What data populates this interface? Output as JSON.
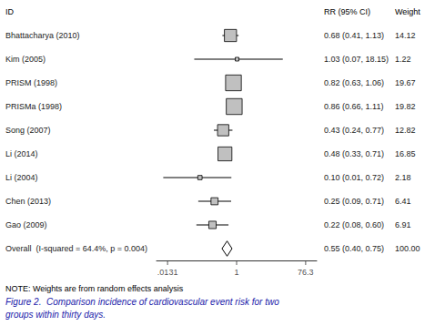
{
  "chart_data": {
    "type": "forest",
    "log": "x",
    "grid": false,
    "column_headers": [
      "ID",
      "RR (95% CI)",
      "Weight"
    ],
    "categories": [
      "Bhattacharya (2010)",
      "Kim (2005)",
      "PRISM (1998)",
      "PRISMa (1998)",
      "Song (2007)",
      "Li (2014)",
      "Li (2004)",
      "Chen (2013)",
      "Gao (2009)"
    ],
    "values": [
      0.68,
      1.03,
      0.82,
      0.86,
      0.43,
      0.48,
      0.1,
      0.25,
      0.22
    ],
    "value_labels": [
      "0.68 (0.41, 1.13)",
      "1.03 (0.07, 18.15)",
      "0.82 (0.63, 1.06)",
      "0.86 (0.66, 1.11)",
      "0.43 (0.24, 0.77)",
      "0.48 (0.33, 0.71)",
      "0.10 (0.01, 0.72)",
      "0.25 (0.09, 0.71)",
      "0.22 (0.08, 0.60)"
    ],
    "ci_low": [
      0.41,
      0.07,
      0.63,
      0.66,
      0.24,
      0.33,
      0.01,
      0.09,
      0.08
    ],
    "ci_high": [
      1.13,
      18.15,
      1.06,
      1.11,
      0.77,
      0.71,
      0.72,
      0.71,
      0.6
    ],
    "weights": [
      14.12,
      1.22,
      19.67,
      19.82,
      12.82,
      16.85,
      2.18,
      6.41,
      6.91
    ],
    "overall": {
      "label": "Overall  (I-squared = 64.4%, p = 0.004)",
      "value": 0.55,
      "ci_low": 0.4,
      "ci_high": 0.75,
      "value_label": "0.55 (0.40, 0.75)",
      "weight": 100,
      "weight_label": "100.00"
    },
    "xlim": [
      0.00655,
      152.6
    ],
    "xticks": [
      {
        "value": 0.0131,
        "label": ".0131"
      },
      1,
      {
        "value": 76.3,
        "label": "76.3"
      }
    ],
    "color": "#c0c0c0",
    "note": "NOTE: Weights are from random effects analysis",
    "caption": [
      "Figure 2.  Comparison incidence of cardiovascular event risk for two",
      "groups within thirty days."
    ],
    "caption_color": "#1a1aaa"
  }
}
